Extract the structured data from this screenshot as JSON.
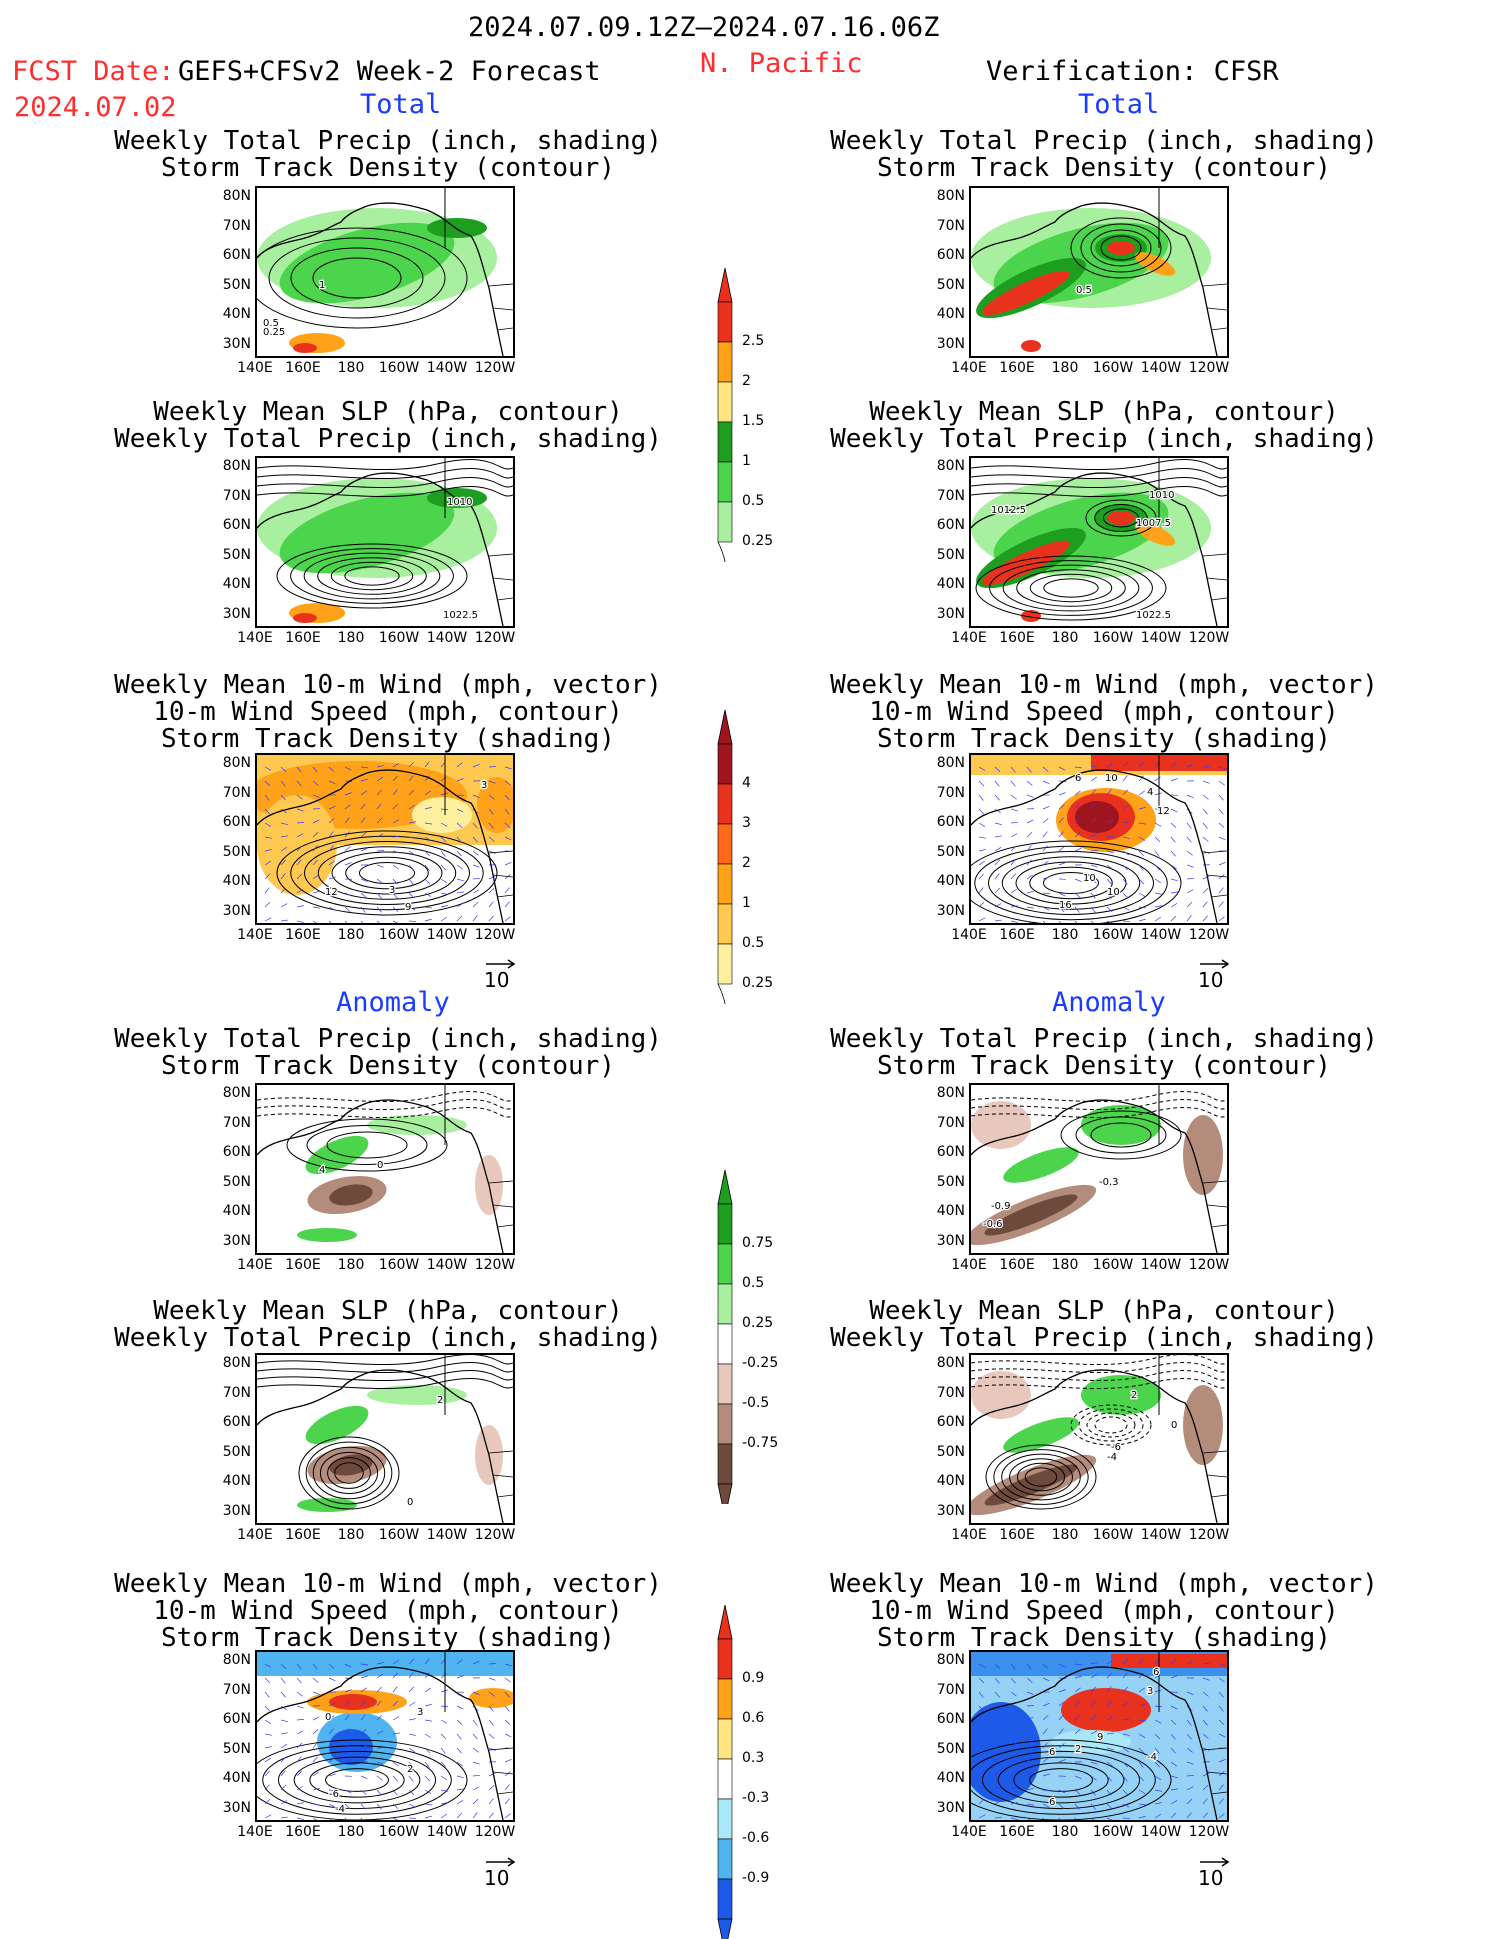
{
  "header": {
    "date_range": "2024.07.09.12Z–2024.07.16.06Z",
    "fcst_label": "FCST Date:",
    "model_label": "GEFS+CFSv2 Week-2 Forecast",
    "fcst_date": "2024.07.02",
    "region": "N. Pacific",
    "verification": "Verification: CFSR"
  },
  "section_labels": {
    "total": "Total",
    "anomaly": "Anomaly"
  },
  "titles": {
    "precip_storm": [
      "Weekly Total Precip (inch, shading)",
      "Storm Track Density (contour)"
    ],
    "slp_precip": [
      "Weekly Mean SLP (hPa, contour)",
      "Weekly Total Precip (inch, shading)"
    ],
    "wind_storm": [
      "Weekly Mean 10-m Wind (mph, vector)",
      "10-m Wind Speed (mph, contour)",
      "Storm Track Density (shading)"
    ]
  },
  "axes": {
    "lat": [
      "80N",
      "70N",
      "60N",
      "50N",
      "40N",
      "30N"
    ],
    "lon": [
      "140E",
      "160E",
      "180",
      "160W",
      "140W",
      "120W"
    ]
  },
  "vector_ref": "10",
  "colorbars": {
    "precip_total": {
      "labels": [
        "2.5",
        "2",
        "1.5",
        "1",
        "0.5",
        "0.25"
      ],
      "colors": [
        "#e8321e",
        "#ffa21a",
        "#ffe680",
        "#1e9e1e",
        "#4cd44c",
        "#a8f0a0"
      ]
    },
    "storm_total": {
      "labels": [
        "4",
        "3",
        "2",
        "1",
        "0.5",
        "0.25"
      ],
      "colors": [
        "#a0141e",
        "#e8321e",
        "#ff6a1a",
        "#ffa21a",
        "#ffc850",
        "#fff0a0"
      ]
    },
    "precip_anom": {
      "labels": [
        "0.75",
        "0.5",
        "0.25",
        "-0.25",
        "-0.5",
        "-0.75"
      ],
      "colors": [
        "#1e9e1e",
        "#4cd44c",
        "#a8f0a0",
        "#ffffff",
        "#e8c8bc",
        "#b48c7c",
        "#6e4a3c"
      ]
    },
    "storm_anom": {
      "labels": [
        "0.9",
        "0.6",
        "0.3",
        "-0.3",
        "-0.6",
        "-0.9"
      ],
      "colors": [
        "#e8321e",
        "#ffa21a",
        "#ffe680",
        "#ffffff",
        "#a8e8f8",
        "#50b4f0",
        "#1e5ae8"
      ]
    }
  },
  "contour_labels": {
    "p1": [
      "1",
      "0.5",
      "0.25"
    ],
    "p2": [
      "0.5",
      "0.5"
    ],
    "p3": [
      "1010",
      "1022.5"
    ],
    "p4": [
      "1012.5",
      "1010",
      "1007.5",
      "1022.5"
    ],
    "p5": [
      "3",
      "3",
      "12",
      "9"
    ],
    "p6": [
      "6",
      "10",
      "4",
      "12",
      "10",
      "16",
      "10"
    ],
    "p7": [
      "4",
      "0"
    ],
    "p8": [
      "-0.3",
      "-0.9",
      "-0.6"
    ],
    "p9": [
      "2",
      "0"
    ],
    "p10": [
      "2",
      "-6",
      "-4",
      "0"
    ],
    "p11": [
      "0",
      "3",
      "2",
      "-6",
      "-4"
    ],
    "p12": [
      "6",
      "3",
      "9",
      "6",
      "2",
      "-4",
      "6"
    ]
  }
}
